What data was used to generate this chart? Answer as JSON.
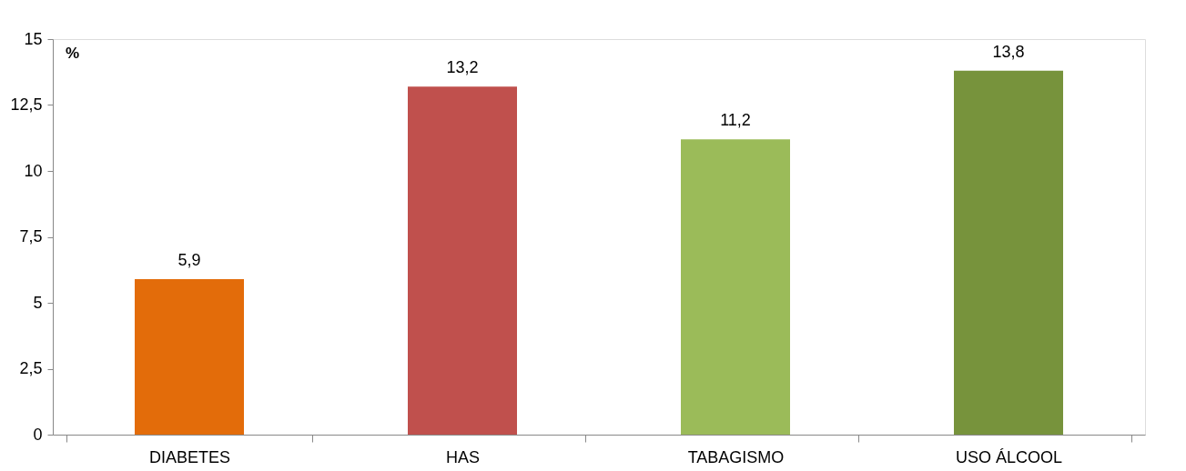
{
  "chart_data": {
    "type": "bar",
    "ylabel": "%",
    "categories": [
      "DIABETES",
      "HAS",
      "TABAGISMO",
      "USO ÁLCOOL"
    ],
    "values": [
      5.9,
      13.2,
      11.2,
      13.8
    ],
    "colors": [
      "#e36c0a",
      "#c0504d",
      "#9bbb59",
      "#77933c"
    ],
    "value_labels": [
      "5,9",
      "13,2",
      "11,2",
      "13,8"
    ],
    "ylim": [
      0,
      15
    ],
    "yticks": [
      0,
      {
        "value": 2.5,
        "label": "2,5"
      },
      5,
      {
        "value": 7.5,
        "label": "7,5"
      },
      10,
      {
        "value": 12.5,
        "label": "12,5"
      },
      15
    ],
    "grid": false
  }
}
